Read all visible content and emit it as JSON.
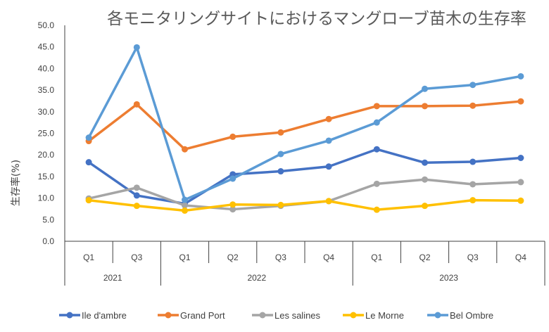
{
  "chart_data": {
    "type": "line",
    "title": "各モニタリングサイトにおけるマングローブ苗木の生存率",
    "ylabel": "生存率(%)",
    "xlabel": "",
    "ylim": [
      0,
      50
    ],
    "y_ticks": [
      "0.0",
      "5.0",
      "10.0",
      "15.0",
      "20.0",
      "25.0",
      "30.0",
      "35.0",
      "40.0",
      "45.0",
      "50.0"
    ],
    "categories": [
      "Q1",
      "Q3",
      "Q1",
      "Q2",
      "Q3",
      "Q4",
      "Q1",
      "Q2",
      "Q3",
      "Q4"
    ],
    "years": [
      {
        "label": "2021",
        "span": 2
      },
      {
        "label": "2022",
        "span": 4
      },
      {
        "label": "2023",
        "span": 4
      }
    ],
    "grid": false,
    "legend_position": "bottom",
    "series": [
      {
        "name": "Ile d'ambre",
        "color": "#4472C4",
        "values": [
          18.3,
          10.6,
          8.7,
          15.5,
          16.2,
          17.3,
          21.3,
          18.2,
          18.4,
          19.3
        ]
      },
      {
        "name": "Grand Port",
        "color": "#ED7D31",
        "values": [
          23.2,
          31.7,
          21.3,
          24.2,
          25.2,
          28.3,
          31.3,
          31.3,
          31.4,
          32.4
        ]
      },
      {
        "name": "Les salines",
        "color": "#A5A5A5",
        "values": [
          9.9,
          12.4,
          8.3,
          7.4,
          8.2,
          9.3,
          13.3,
          14.3,
          13.2,
          13.7
        ]
      },
      {
        "name": "Le Morne",
        "color": "#FFC000",
        "values": [
          9.5,
          8.2,
          7.1,
          8.5,
          8.4,
          9.3,
          7.3,
          8.2,
          9.5,
          9.4
        ]
      },
      {
        "name": "Bel Ombre",
        "color": "#5B9BD5",
        "values": [
          24.0,
          44.9,
          9.6,
          14.5,
          20.2,
          23.3,
          27.5,
          35.3,
          36.2,
          38.2
        ]
      }
    ]
  }
}
